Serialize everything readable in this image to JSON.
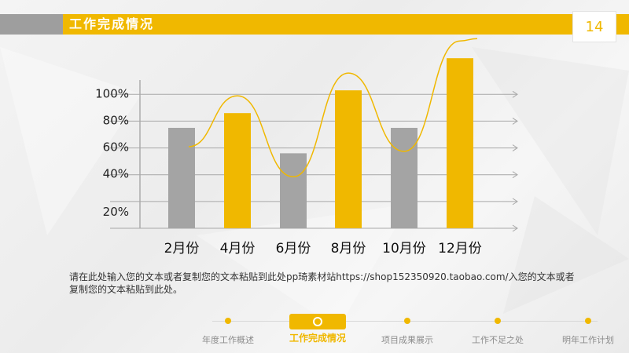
{
  "header": {
    "title": "工作完成情况",
    "page_number": "14"
  },
  "chart_data": {
    "type": "bar",
    "title": "",
    "xlabel": "",
    "ylabel": "",
    "categories": [
      "2月份",
      "4月份",
      "6月份",
      "8月份",
      "10月份",
      "12月份"
    ],
    "values": [
      75,
      86,
      56,
      103,
      75,
      127
    ],
    "y_ticks": [
      "20%",
      "40%",
      "60%",
      "80%",
      "100%"
    ],
    "y_tick_values": [
      20,
      40,
      60,
      80,
      100
    ],
    "ylim": [
      0,
      140
    ],
    "bar_colors": [
      "#a4a4a4",
      "#f0b800",
      "#a4a4a4",
      "#f0b800",
      "#a4a4a4",
      "#f0b800"
    ],
    "grid": true,
    "trend_line": true
  },
  "description": "请在此处输入您的文本或者复制您的文本粘贴到此处pp琦素材站https://shop152350920.taobao.com/入您的文本或者复制您的文本粘贴到此处。",
  "nav": {
    "items": [
      {
        "label": "年度工作概述",
        "active": false
      },
      {
        "label": "工作完成情况",
        "active": true
      },
      {
        "label": "项目成果展示",
        "active": false
      },
      {
        "label": "工作不足之处",
        "active": false
      },
      {
        "label": "明年工作计划",
        "active": false
      }
    ]
  },
  "colors": {
    "accent": "#f0b800",
    "gray_bar": "#a4a4a4"
  }
}
